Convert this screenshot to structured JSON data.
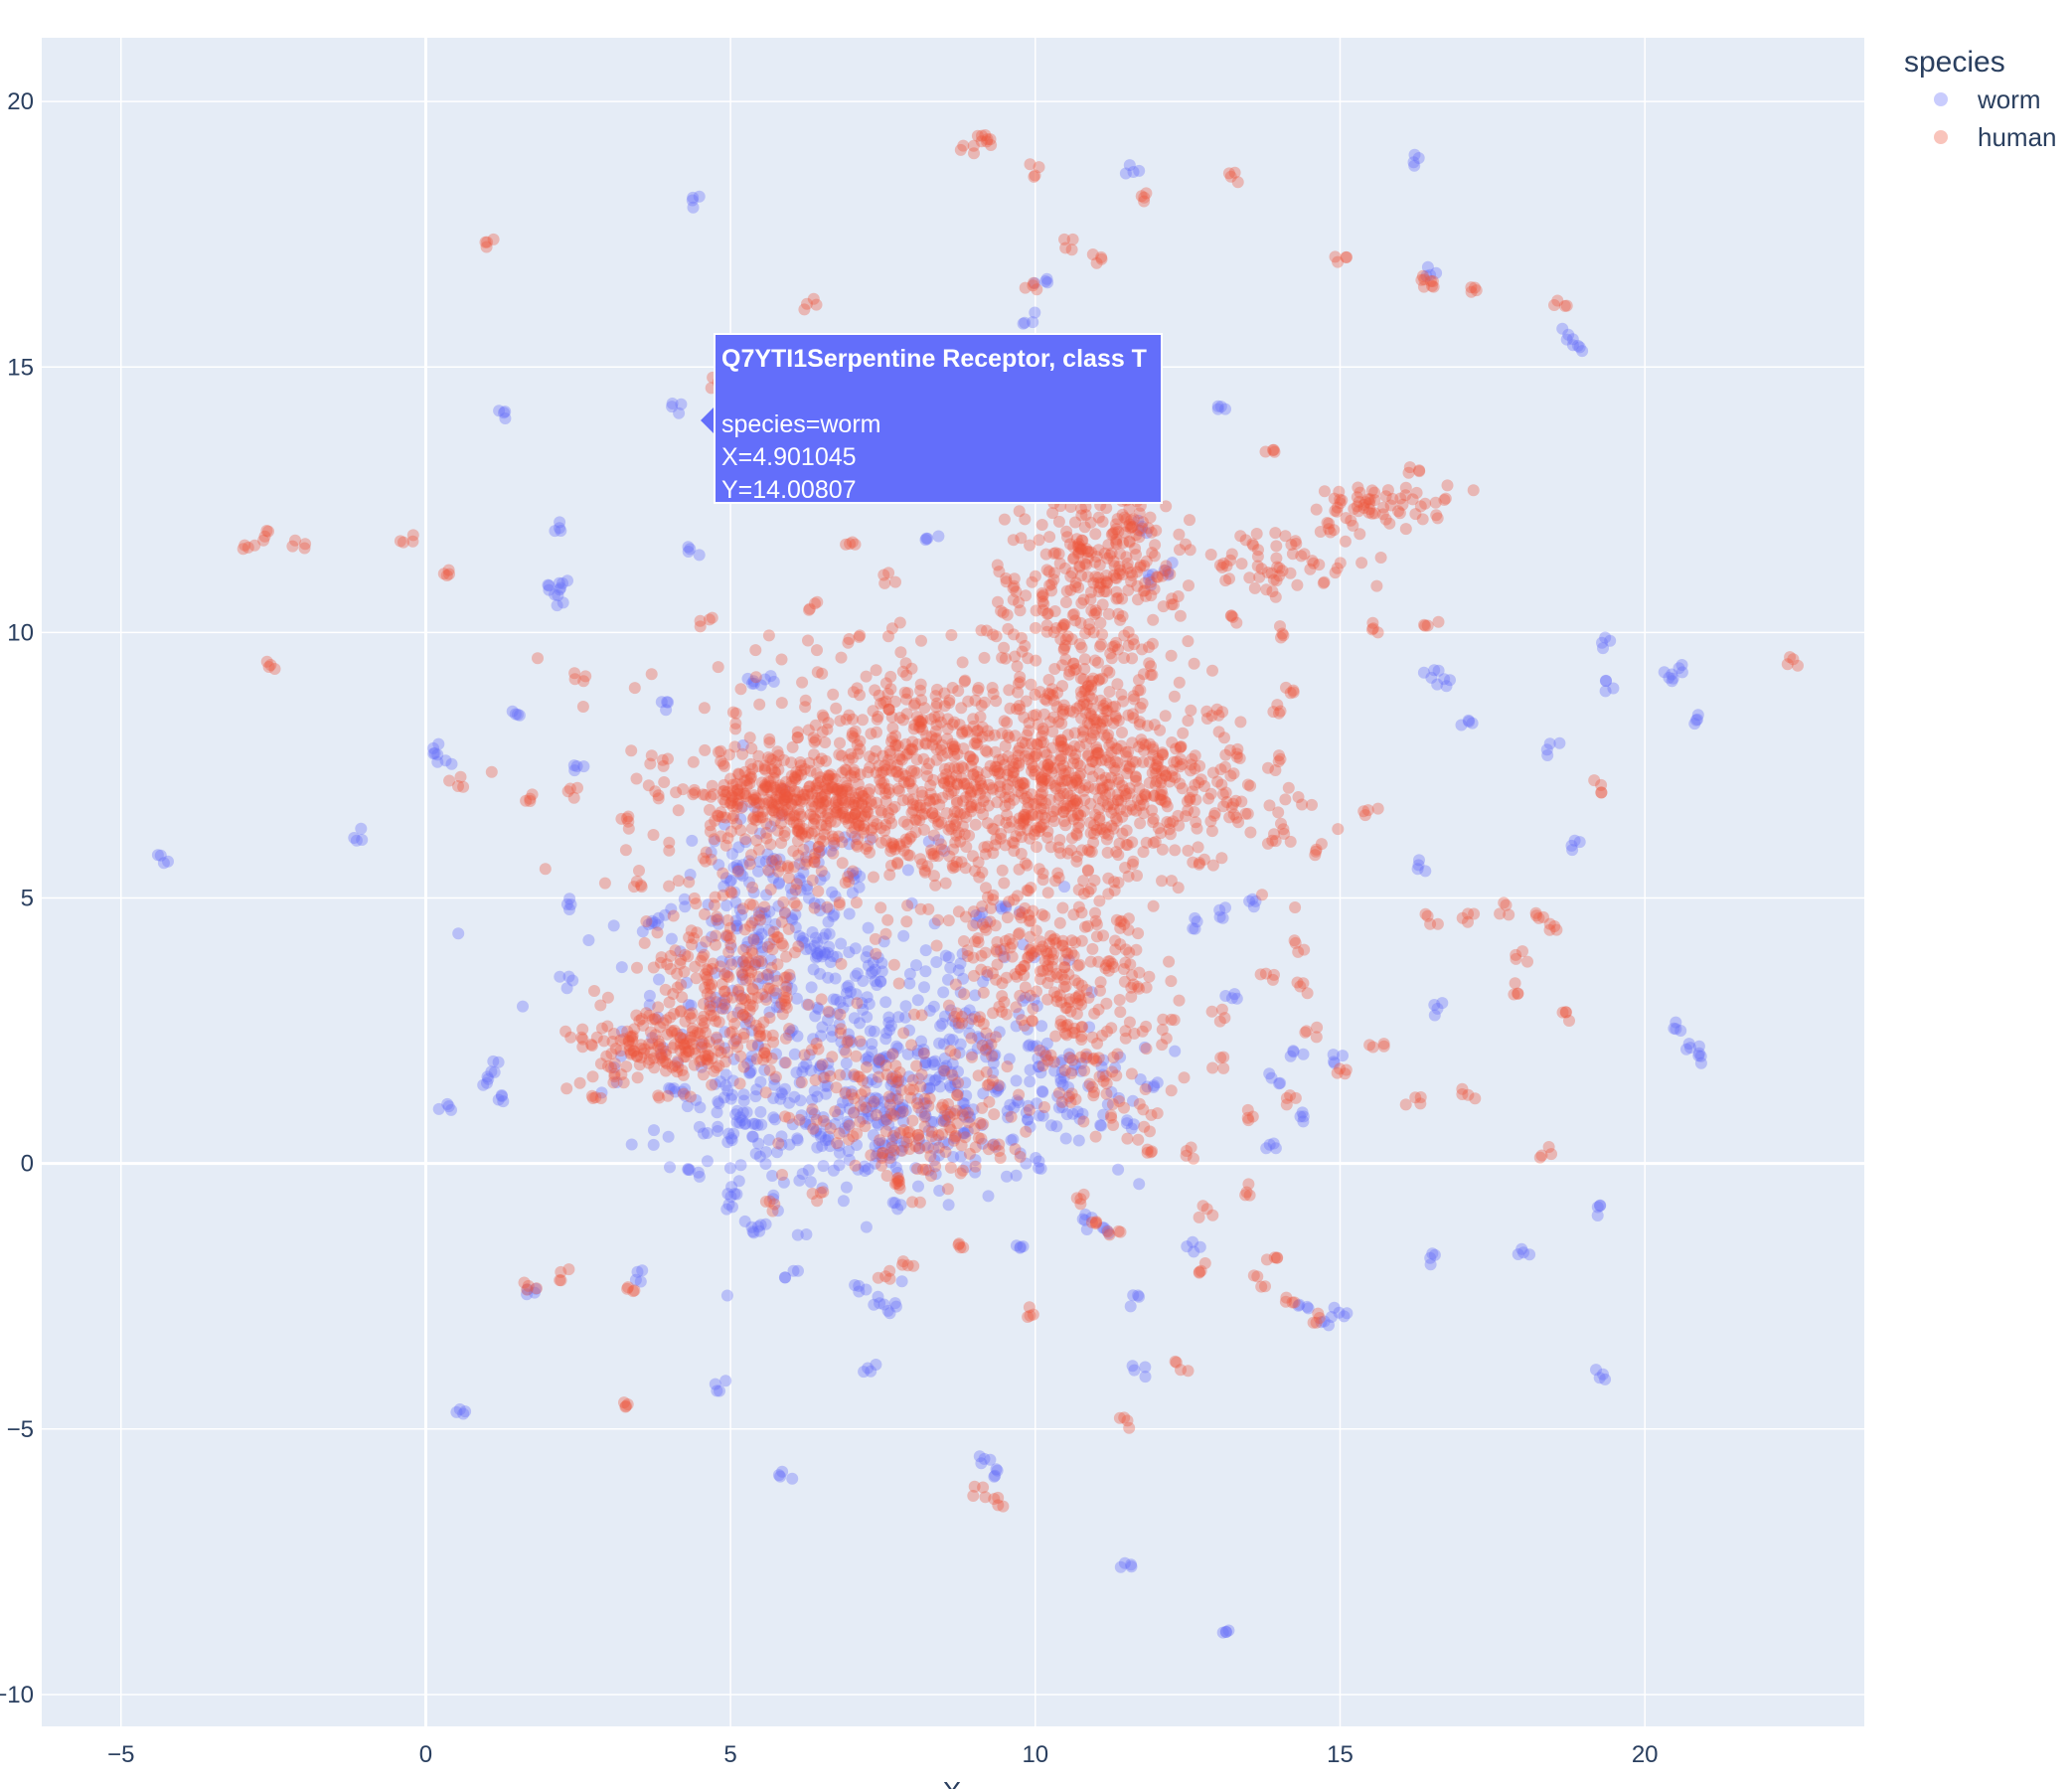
{
  "chart_data": {
    "type": "scatter",
    "title": "",
    "xlabel": "X",
    "ylabel": "",
    "xlim": [
      -6.3,
      23.6
    ],
    "ylim": [
      -10.6,
      21.2
    ],
    "x_ticks": [
      "−5",
      "0",
      "5",
      "10",
      "15",
      "20"
    ],
    "x_tick_values": [
      -5,
      0,
      5,
      10,
      15,
      20
    ],
    "y_ticks": [
      "20",
      "15",
      "10",
      "5",
      "0",
      "−5",
      "−10"
    ],
    "y_tick_values": [
      20,
      15,
      10,
      5,
      0,
      -5,
      -10
    ],
    "grid": true,
    "legend": {
      "title": "species",
      "position": "top-right outside"
    },
    "colors": {
      "worm": "#636efa",
      "human": "#ef553b",
      "plot_bg": "#e5ecf6",
      "grid": "#ffffff",
      "text": "#2a3f5f"
    },
    "series": [
      {
        "name": "worm",
        "points": [
          [
            4.5,
            18.1
          ],
          [
            11.6,
            18.7
          ],
          [
            16.3,
            18.9
          ],
          [
            10.1,
            16.7
          ],
          [
            9.9,
            15.9
          ],
          [
            16.5,
            16.8
          ],
          [
            18.7,
            15.6
          ],
          [
            18.9,
            15.3
          ],
          [
            13.1,
            14.3
          ],
          [
            1.2,
            14.1
          ],
          [
            4.1,
            14.2
          ],
          [
            4.9,
            14.0
          ],
          [
            2.1,
            10.8
          ],
          [
            2.2,
            10.6
          ],
          [
            2.3,
            10.9
          ],
          [
            4.4,
            11.5
          ],
          [
            2.2,
            12.0
          ],
          [
            8.3,
            11.8
          ],
          [
            11.8,
            12.0
          ],
          [
            11.9,
            11.0
          ],
          [
            12.2,
            11.2
          ],
          [
            1.5,
            8.4
          ],
          [
            3.9,
            8.6
          ],
          [
            5.4,
            9.1
          ],
          [
            5.6,
            9.1
          ],
          [
            0.1,
            7.8
          ],
          [
            0.3,
            7.6
          ],
          [
            2.5,
            7.4
          ],
          [
            -1.1,
            6.2
          ],
          [
            -4.3,
            5.7
          ],
          [
            2.4,
            4.9
          ],
          [
            16.7,
            9.0
          ],
          [
            16.5,
            9.2
          ],
          [
            17.1,
            8.3
          ],
          [
            19.4,
            9.8
          ],
          [
            19.4,
            9.0
          ],
          [
            20.5,
            9.3
          ],
          [
            20.4,
            9.2
          ],
          [
            20.8,
            8.4
          ],
          [
            18.5,
            7.8
          ],
          [
            18.9,
            6.0
          ],
          [
            16.3,
            5.6
          ],
          [
            13.1,
            4.7
          ],
          [
            13.5,
            4.9
          ],
          [
            13.2,
            3.2
          ],
          [
            12.6,
            4.5
          ],
          [
            2.3,
            3.4
          ],
          [
            3.8,
            4.6
          ],
          [
            16.6,
            2.9
          ],
          [
            20.6,
            2.6
          ],
          [
            20.8,
            2.2
          ],
          [
            20.8,
            2.0
          ],
          [
            0.3,
            1.0
          ],
          [
            1.0,
            1.6
          ],
          [
            1.3,
            1.2
          ],
          [
            1.1,
            1.8
          ],
          [
            14.3,
            2.0
          ],
          [
            15.0,
            2.0
          ],
          [
            11.9,
            1.5
          ],
          [
            11.5,
            0.7
          ],
          [
            10.1,
            0.0
          ],
          [
            13.9,
            1.6
          ],
          [
            14.3,
            0.9
          ],
          [
            13.9,
            0.4
          ],
          [
            4.4,
            -0.2
          ],
          [
            5.0,
            -0.7
          ],
          [
            5.5,
            -1.2
          ],
          [
            5.3,
            -1.2
          ],
          [
            6.0,
            -2.1
          ],
          [
            7.1,
            -2.3
          ],
          [
            7.6,
            -2.7
          ],
          [
            7.4,
            -2.6
          ],
          [
            7.7,
            -0.8
          ],
          [
            9.7,
            -1.6
          ],
          [
            10.9,
            -1.0
          ],
          [
            11.2,
            -1.3
          ],
          [
            12.6,
            -1.6
          ],
          [
            11.6,
            -2.6
          ],
          [
            14.4,
            -2.7
          ],
          [
            14.8,
            -3.0
          ],
          [
            15.0,
            -2.8
          ],
          [
            16.6,
            -1.8
          ],
          [
            18.0,
            -1.6
          ],
          [
            19.3,
            -0.9
          ],
          [
            19.3,
            -4.0
          ],
          [
            7.3,
            -3.9
          ],
          [
            11.7,
            -3.9
          ],
          [
            4.8,
            -4.2
          ],
          [
            0.6,
            -4.6
          ],
          [
            1.7,
            -2.4
          ],
          [
            3.5,
            -2.1
          ],
          [
            5.9,
            -5.9
          ],
          [
            9.2,
            -5.6
          ],
          [
            9.3,
            -5.8
          ],
          [
            11.5,
            -7.6
          ],
          [
            13.2,
            -8.8
          ],
          [
            6.8,
            3.0
          ],
          [
            7.4,
            3.5
          ],
          [
            5.2,
            4.5
          ],
          [
            6.0,
            2.5
          ],
          [
            8.2,
            2.0
          ],
          [
            7.8,
            1.0
          ],
          [
            5.8,
            1.3
          ],
          [
            9.3,
            2.1
          ],
          [
            10.5,
            1.6
          ],
          [
            6.5,
            4.0
          ],
          [
            9.1,
            4.6
          ],
          [
            4.8,
            3.0
          ],
          [
            7.0,
            5.4
          ],
          [
            5.6,
            5.8
          ],
          [
            8.5,
            3.8
          ],
          [
            6.2,
            1.8
          ],
          [
            9.6,
            1.1
          ],
          [
            10.0,
            2.3
          ],
          [
            8.8,
            0.5
          ],
          [
            7.4,
            1.9
          ],
          [
            5.1,
            5.5
          ],
          [
            6.6,
            0.4
          ]
        ],
        "clusters": [
          [
            6.8,
            2.6,
            1.8,
            1.5,
            320
          ],
          [
            5.6,
            4.6,
            0.9,
            1.0,
            120
          ],
          [
            8.5,
            1.4,
            1.2,
            0.9,
            140
          ],
          [
            5.2,
            0.6,
            0.7,
            0.7,
            60
          ],
          [
            7.4,
            0.8,
            0.9,
            0.7,
            80
          ],
          [
            10.5,
            1.4,
            0.6,
            0.5,
            40
          ]
        ]
      },
      {
        "name": "human",
        "points": [
          [
            9.1,
            19.3
          ],
          [
            8.9,
            19.1
          ],
          [
            9.3,
            19.3
          ],
          [
            13.3,
            18.6
          ],
          [
            1.0,
            17.3
          ],
          [
            6.3,
            16.2
          ],
          [
            16.3,
            16.6
          ],
          [
            16.6,
            16.6
          ],
          [
            18.6,
            16.2
          ],
          [
            9.9,
            16.5
          ],
          [
            10.0,
            18.7
          ],
          [
            11.7,
            18.2
          ],
          [
            10.5,
            17.3
          ],
          [
            11.0,
            17.0
          ],
          [
            15.0,
            17.0
          ],
          [
            17.2,
            16.5
          ],
          [
            -2.6,
            11.8
          ],
          [
            -2.9,
            11.7
          ],
          [
            -2.1,
            11.7
          ],
          [
            -0.3,
            11.8
          ],
          [
            0.4,
            11.2
          ],
          [
            4.8,
            14.7
          ],
          [
            7.0,
            11.7
          ],
          [
            6.3,
            10.5
          ],
          [
            7.6,
            11.0
          ],
          [
            7.9,
            9.3
          ],
          [
            7.0,
            9.9
          ],
          [
            4.6,
            10.2
          ],
          [
            -2.6,
            9.4
          ],
          [
            1.7,
            6.9
          ],
          [
            0.5,
            7.2
          ],
          [
            2.4,
            7.0
          ],
          [
            2.5,
            9.2
          ],
          [
            13.8,
            13.5
          ],
          [
            14.8,
            12.0
          ],
          [
            15.5,
            12.4
          ],
          [
            16.2,
            13.1
          ],
          [
            12.3,
            10.6
          ],
          [
            13.2,
            10.3
          ],
          [
            14.0,
            10.0
          ],
          [
            15.6,
            10.1
          ],
          [
            16.5,
            10.1
          ],
          [
            14.2,
            8.9
          ],
          [
            14.0,
            8.6
          ],
          [
            13.0,
            8.5
          ],
          [
            13.3,
            7.7
          ],
          [
            13.9,
            7.5
          ],
          [
            15.5,
            6.6
          ],
          [
            14.0,
            6.1
          ],
          [
            14.7,
            5.9
          ],
          [
            16.5,
            4.6
          ],
          [
            17.1,
            4.6
          ],
          [
            17.7,
            4.8
          ],
          [
            18.3,
            4.6
          ],
          [
            19.2,
            7.1
          ],
          [
            22.4,
            9.5
          ],
          [
            18.5,
            4.5
          ],
          [
            18.0,
            3.9
          ],
          [
            18.7,
            2.8
          ],
          [
            17.8,
            3.3
          ],
          [
            15.6,
            2.2
          ],
          [
            15.0,
            1.8
          ],
          [
            16.2,
            1.2
          ],
          [
            17.1,
            1.3
          ],
          [
            18.4,
            0.2
          ],
          [
            13.0,
            1.9
          ],
          [
            14.2,
            1.2
          ],
          [
            13.5,
            0.9
          ],
          [
            14.5,
            2.5
          ],
          [
            3.0,
            2.0
          ],
          [
            2.8,
            1.3
          ],
          [
            3.4,
            2.4
          ],
          [
            2.6,
            2.3
          ],
          [
            3.2,
            1.6
          ],
          [
            1.7,
            -2.3
          ],
          [
            2.3,
            -2.1
          ],
          [
            3.3,
            -2.3
          ],
          [
            3.3,
            -4.5
          ],
          [
            11.5,
            -4.9
          ],
          [
            9.1,
            -6.2
          ],
          [
            9.4,
            -6.4
          ],
          [
            12.4,
            -3.8
          ],
          [
            12.7,
            -2.0
          ],
          [
            11.0,
            -1.2
          ],
          [
            11.3,
            -1.3
          ],
          [
            14.2,
            -2.6
          ],
          [
            14.6,
            -2.9
          ],
          [
            13.7,
            -2.2
          ],
          [
            13.9,
            -1.8
          ],
          [
            9.9,
            -2.8
          ],
          [
            7.5,
            -2.1
          ],
          [
            7.9,
            -1.9
          ],
          [
            6.4,
            -0.6
          ],
          [
            8.7,
            -1.5
          ],
          [
            7.8,
            -0.3
          ],
          [
            5.6,
            -0.8
          ],
          [
            12.8,
            -0.9
          ],
          [
            13.5,
            -0.5
          ],
          [
            12.6,
            0.2
          ],
          [
            10.8,
            -0.7
          ],
          [
            9.3,
            0.3
          ],
          [
            11.8,
            0.3
          ],
          [
            7.1,
            6.9
          ],
          [
            5.3,
            3.7
          ],
          [
            3.5,
            5.2
          ],
          [
            3.3,
            6.4
          ],
          [
            3.9,
            3.8
          ],
          [
            10.7,
            2.5
          ],
          [
            11.5,
            4.5
          ],
          [
            12.8,
            5.7
          ],
          [
            13.3,
            6.5
          ],
          [
            13.8,
            3.5
          ],
          [
            14.4,
            3.3
          ],
          [
            14.3,
            4.1
          ],
          [
            13.0,
            2.8
          ],
          [
            12.2,
            2.6
          ],
          [
            11.8,
            3.4
          ],
          [
            6.8,
            6.7
          ],
          [
            8.4,
            5.9
          ],
          [
            4.5,
            7.0
          ],
          [
            3.8,
            7.6
          ],
          [
            5.0,
            6.9
          ],
          [
            9.6,
            10.9
          ],
          [
            10.6,
            11.6
          ],
          [
            11.5,
            12.2
          ]
        ],
        "clusters": [
          [
            8.6,
            7.2,
            2.0,
            1.1,
            900
          ],
          [
            11.0,
            7.1,
            1.2,
            0.8,
            320
          ],
          [
            10.7,
            10.2,
            0.7,
            1.4,
            260
          ],
          [
            11.3,
            11.6,
            0.5,
            0.6,
            120
          ],
          [
            10.3,
            3.6,
            0.8,
            0.9,
            260
          ],
          [
            5.0,
            3.4,
            0.8,
            0.9,
            220
          ],
          [
            4.0,
            2.2,
            0.7,
            0.4,
            150
          ],
          [
            6.2,
            6.6,
            0.8,
            0.6,
            180
          ],
          [
            7.6,
            1.2,
            0.9,
            0.8,
            120
          ],
          [
            8.3,
            0.4,
            0.6,
            0.4,
            70
          ],
          [
            11.2,
            1.6,
            0.6,
            0.5,
            60
          ],
          [
            14.0,
            11.3,
            0.7,
            0.3,
            60
          ],
          [
            15.7,
            12.4,
            0.6,
            0.2,
            60
          ],
          [
            5.7,
            7.0,
            0.6,
            0.3,
            100
          ]
        ]
      }
    ]
  },
  "hover": {
    "title": "Q7YTI1Serpentine Receptor, class T",
    "species": "species=worm",
    "x": "X=4.901045",
    "y": "Y=14.00807"
  }
}
